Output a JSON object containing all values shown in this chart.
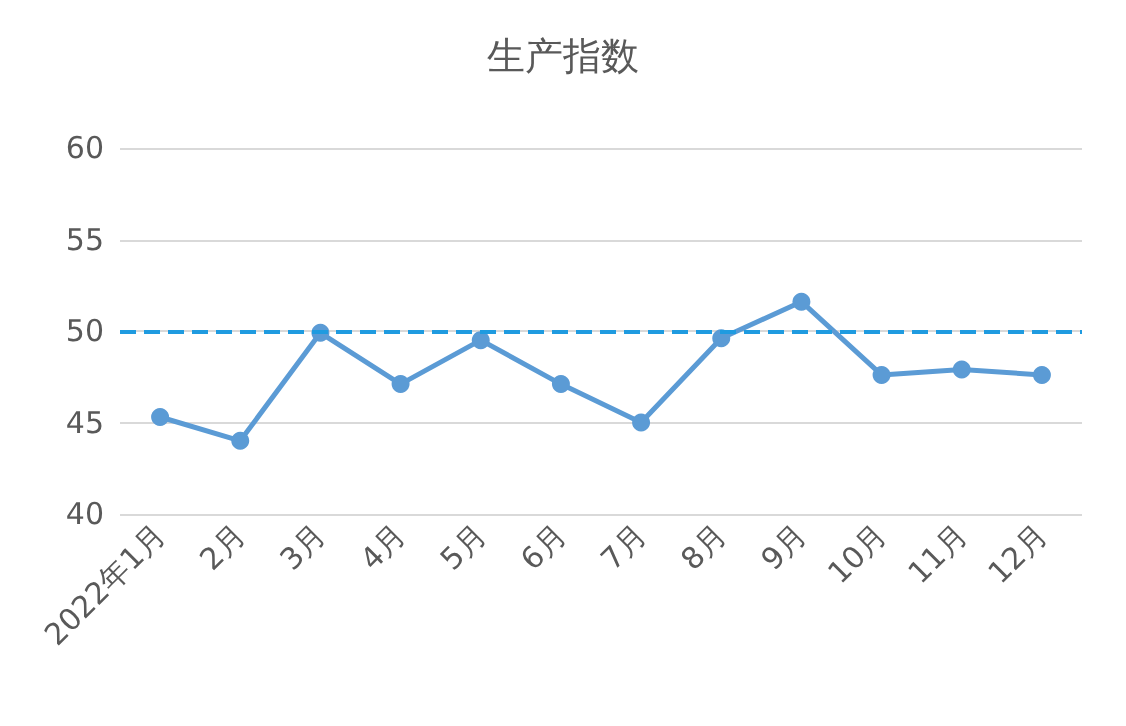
{
  "chart_data": {
    "type": "line",
    "title": "生产指数",
    "categories": [
      "2022年1月",
      "2月",
      "3月",
      "4月",
      "5月",
      "6月",
      "7月",
      "8月",
      "9月",
      "10月",
      "11月",
      "12月"
    ],
    "series": [
      {
        "color": "#5b9bd5",
        "values": [
          45.3,
          44.0,
          49.9,
          47.1,
          49.5,
          47.1,
          45.0,
          49.6,
          51.6,
          47.6,
          47.9,
          47.6
        ]
      }
    ],
    "ylim": [
      40,
      60
    ],
    "yticks": [
      40,
      45,
      50,
      55,
      60
    ],
    "grid": "y",
    "marker": "circle",
    "ref_lines": [
      {
        "axis": "y",
        "value": 50,
        "color": "#1f9be0",
        "line_style": "dashed"
      }
    ]
  }
}
